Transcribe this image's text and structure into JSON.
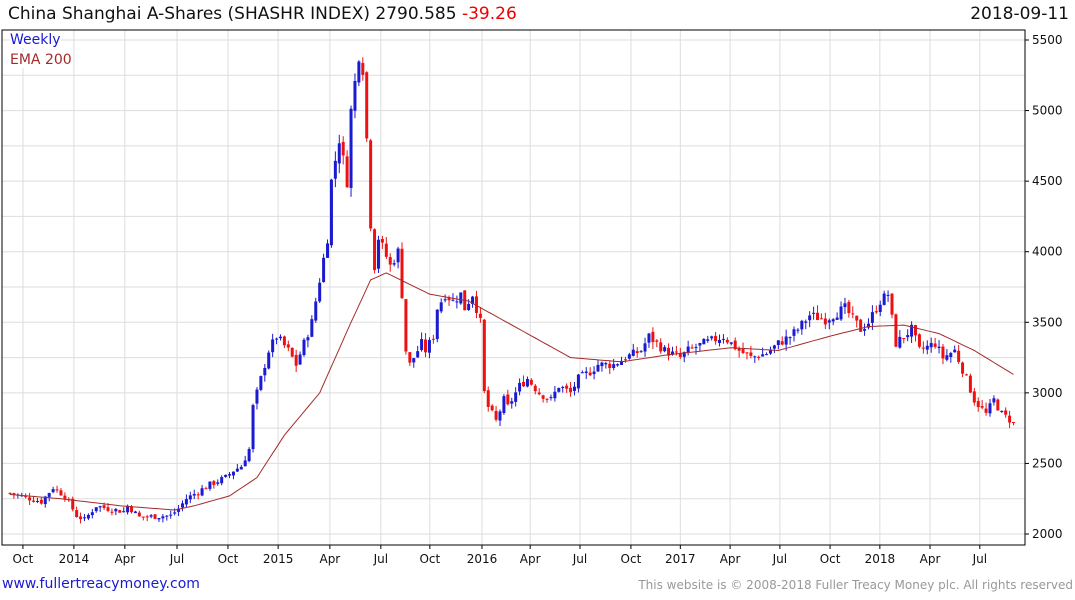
{
  "header": {
    "name": "China Shanghai A-Shares (SHASHR INDEX)",
    "last": "2790.585",
    "change": "-39.26",
    "date": "2018-09-11"
  },
  "legend": {
    "weekly": "Weekly",
    "ema": "EMA 200"
  },
  "footer": {
    "site": "www.fullertreacymoney.com",
    "copyright": "This website is © 2008-2018 Fuller Treacy Money plc. All rights reserved"
  },
  "colors": {
    "up": "#1a1ad0",
    "down": "#ee1111",
    "ema": "#a52a2a",
    "grid": "#dddddd"
  },
  "chart_data": {
    "type": "candlestick",
    "title": "China Shanghai A-Shares (SHASHR INDEX)",
    "frequency": "weekly",
    "ylim": [
      2000,
      5500
    ],
    "y_ticks": [
      2000,
      2500,
      3000,
      3500,
      4000,
      4500,
      5000,
      5500
    ],
    "x_ticks": [
      {
        "label": "Oct",
        "week": 3.3
      },
      {
        "label": "2014",
        "week": 16.3
      },
      {
        "label": "Apr",
        "week": 29.3
      },
      {
        "label": "Jul",
        "week": 42.6
      },
      {
        "label": "Oct",
        "week": 55.6
      },
      {
        "label": "2015",
        "week": 68.4
      },
      {
        "label": "Apr",
        "week": 81.6
      },
      {
        "label": "Jul",
        "week": 94.6
      },
      {
        "label": "Oct",
        "week": 107.1
      },
      {
        "label": "2016",
        "week": 120.4
      },
      {
        "label": "Apr",
        "week": 132.7
      },
      {
        "label": "Jul",
        "week": 145.4
      },
      {
        "label": "Oct",
        "week": 158.4
      },
      {
        "label": "2017",
        "week": 171
      },
      {
        "label": "Apr",
        "week": 183.7
      },
      {
        "label": "Jul",
        "week": 196.4
      },
      {
        "label": "Oct",
        "week": 209.2
      },
      {
        "label": "2018",
        "week": 221.9
      },
      {
        "label": "Apr",
        "week": 234.7
      },
      {
        "label": "Jul",
        "week": 247.4
      }
    ],
    "close_keypoints_week_value": [
      [
        0,
        2290
      ],
      [
        8,
        2230
      ],
      [
        11,
        2330
      ],
      [
        14,
        2270
      ],
      [
        17,
        2130
      ],
      [
        19,
        2100
      ],
      [
        22,
        2200
      ],
      [
        25,
        2180
      ],
      [
        29,
        2160
      ],
      [
        30,
        2200
      ],
      [
        33,
        2120
      ],
      [
        41,
        2130
      ],
      [
        43,
        2180
      ],
      [
        45,
        2250
      ],
      [
        48,
        2300
      ],
      [
        51,
        2350
      ],
      [
        55,
        2400
      ],
      [
        57,
        2450
      ],
      [
        59,
        2480
      ],
      [
        61,
        2600
      ],
      [
        62,
        2900
      ],
      [
        64,
        3100
      ],
      [
        66,
        3300
      ],
      [
        68,
        3400
      ],
      [
        71,
        3300
      ],
      [
        73,
        3200
      ],
      [
        75,
        3350
      ],
      [
        77,
        3500
      ],
      [
        79,
        3800
      ],
      [
        81,
        4100
      ],
      [
        82,
        4500
      ],
      [
        84,
        4800
      ],
      [
        86,
        4500
      ],
      [
        87,
        5000
      ],
      [
        89,
        5400
      ],
      [
        90,
        5300
      ],
      [
        91,
        4800
      ],
      [
        92,
        4200
      ],
      [
        93,
        3900
      ],
      [
        94,
        4100
      ],
      [
        97,
        3900
      ],
      [
        99,
        4000
      ],
      [
        100,
        3700
      ],
      [
        101,
        3300
      ],
      [
        102,
        3200
      ],
      [
        105,
        3350
      ],
      [
        106,
        3300
      ],
      [
        108,
        3400
      ],
      [
        109,
        3600
      ],
      [
        111,
        3700
      ],
      [
        113,
        3650
      ],
      [
        115,
        3700
      ],
      [
        116,
        3600
      ],
      [
        118,
        3700
      ],
      [
        120,
        3500
      ],
      [
        121,
        3000
      ],
      [
        122,
        2900
      ],
      [
        124,
        2800
      ],
      [
        126,
        2950
      ],
      [
        127,
        2900
      ],
      [
        130,
        3050
      ],
      [
        132,
        3100
      ],
      [
        135,
        3000
      ],
      [
        138,
        2950
      ],
      [
        140,
        3050
      ],
      [
        143,
        3000
      ],
      [
        145,
        3100
      ],
      [
        148,
        3150
      ],
      [
        150,
        3200
      ],
      [
        154,
        3200
      ],
      [
        157,
        3250
      ],
      [
        161,
        3300
      ],
      [
        163,
        3400
      ],
      [
        167,
        3300
      ],
      [
        171,
        3250
      ],
      [
        173,
        3300
      ],
      [
        177,
        3350
      ],
      [
        182,
        3400
      ],
      [
        186,
        3300
      ],
      [
        189,
        3250
      ],
      [
        193,
        3280
      ],
      [
        196,
        3350
      ],
      [
        199,
        3400
      ],
      [
        201,
        3450
      ],
      [
        204,
        3550
      ],
      [
        208,
        3520
      ],
      [
        213,
        3600
      ],
      [
        217,
        3450
      ],
      [
        219,
        3500
      ],
      [
        222,
        3650
      ],
      [
        224,
        3700
      ],
      [
        226,
        3350
      ],
      [
        228,
        3400
      ],
      [
        230,
        3450
      ],
      [
        232,
        3300
      ],
      [
        236,
        3350
      ],
      [
        238,
        3250
      ],
      [
        241,
        3300
      ],
      [
        244,
        3100
      ],
      [
        246,
        2950
      ],
      [
        249,
        2850
      ],
      [
        251,
        2950
      ],
      [
        253,
        2850
      ],
      [
        256,
        2790.585
      ]
    ],
    "ema200_keypoints_week_value": [
      [
        0,
        2280
      ],
      [
        13,
        2250
      ],
      [
        28,
        2200
      ],
      [
        42,
        2170
      ],
      [
        47,
        2200
      ],
      [
        56,
        2270
      ],
      [
        63,
        2400
      ],
      [
        70,
        2700
      ],
      [
        79,
        3000
      ],
      [
        87,
        3500
      ],
      [
        92,
        3800
      ],
      [
        96,
        3850
      ],
      [
        107,
        3700
      ],
      [
        117,
        3650
      ],
      [
        130,
        3450
      ],
      [
        143,
        3250
      ],
      [
        156,
        3220
      ],
      [
        168,
        3270
      ],
      [
        184,
        3320
      ],
      [
        196,
        3300
      ],
      [
        209,
        3400
      ],
      [
        219,
        3470
      ],
      [
        228,
        3480
      ],
      [
        237,
        3420
      ],
      [
        246,
        3300
      ],
      [
        256,
        3130
      ]
    ]
  }
}
